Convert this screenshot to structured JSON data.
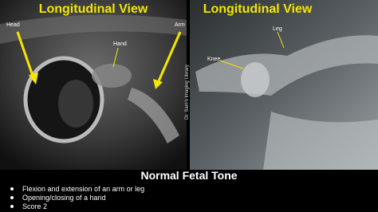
{
  "panels": [
    {
      "title": "Longitudinal View",
      "labels": [
        "Head",
        "Hand",
        "Arm"
      ]
    },
    {
      "title": "Longitudinal View",
      "labels": [
        "Knee",
        "Leg"
      ]
    }
  ],
  "watermark": "Dr. Sam's Imaging Library",
  "caption": {
    "title": "Normal Fetal Tone",
    "bullets": [
      "Flexion and extension of an arm or leg",
      "Opening/closing of a hand",
      "Score 2"
    ]
  }
}
